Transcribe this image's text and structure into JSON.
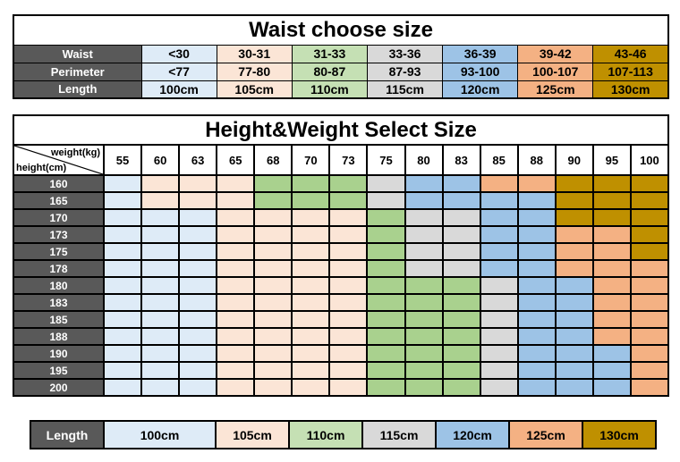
{
  "colors": {
    "background": "#ffffff",
    "border": "#000000",
    "header_bg": "#595959",
    "header_text": "#ffffff",
    "size_fill_light": {
      "100": "#DEEBF7",
      "105": "#FBE5D6",
      "110": "#C5E0B4",
      "115": "#D9D9D9",
      "120": "#9DC3E6",
      "125": "#F4B183",
      "130": "#BF9000"
    },
    "size_fill_grid": {
      "100": "#DEEBF7",
      "105": "#FBE5D6",
      "110": "#A9D18E",
      "115": "#D9D9D9",
      "120": "#9DC3E6",
      "125": "#F4B183",
      "130": "#BF9000"
    }
  },
  "chart_data": [
    {
      "type": "table",
      "title": "Waist choose size",
      "column_sizes": [
        "100",
        "105",
        "110",
        "115",
        "120",
        "125",
        "130"
      ],
      "rows": [
        {
          "label": "Waist",
          "values": [
            "<30",
            "30-31",
            "31-33",
            "33-36",
            "36-39",
            "39-42",
            "43-46"
          ]
        },
        {
          "label": "Perimeter",
          "values": [
            "<77",
            "77-80",
            "80-87",
            "87-93",
            "93-100",
            "100-107",
            "107-113"
          ]
        },
        {
          "label": "Length",
          "values": [
            "100cm",
            "105cm",
            "110cm",
            "115cm",
            "120cm",
            "125cm",
            "130cm"
          ]
        }
      ]
    },
    {
      "type": "heatmap",
      "title": "Height&Weight Select Size",
      "corner": {
        "top_label": "weight(kg)",
        "bottom_label": "height(cm)"
      },
      "x_axis": {
        "name": "weight(kg)",
        "ticks": [
          "55",
          "60",
          "63",
          "65",
          "68",
          "70",
          "73",
          "75",
          "80",
          "83",
          "85",
          "88",
          "90",
          "95",
          "100"
        ]
      },
      "y_axis": {
        "name": "height(cm)",
        "ticks": [
          "160",
          "165",
          "170",
          "173",
          "175",
          "178",
          "180",
          "183",
          "185",
          "188",
          "190",
          "195",
          "200"
        ]
      },
      "rows": [
        {
          "height": "160",
          "sizes": [
            "100",
            "105",
            "105",
            "105",
            "110",
            "110",
            "110",
            "115",
            "120",
            "120",
            "125",
            "125",
            "130",
            "130",
            "130"
          ]
        },
        {
          "height": "165",
          "sizes": [
            "100",
            "105",
            "105",
            "105",
            "110",
            "110",
            "110",
            "115",
            "120",
            "120",
            "120",
            "120",
            "130",
            "130",
            "130"
          ]
        },
        {
          "height": "170",
          "sizes": [
            "100",
            "100",
            "100",
            "105",
            "105",
            "105",
            "105",
            "110",
            "115",
            "115",
            "120",
            "120",
            "130",
            "130",
            "130"
          ]
        },
        {
          "height": "173",
          "sizes": [
            "100",
            "100",
            "100",
            "105",
            "105",
            "105",
            "105",
            "110",
            "115",
            "115",
            "120",
            "120",
            "125",
            "125",
            "130"
          ]
        },
        {
          "height": "175",
          "sizes": [
            "100",
            "100",
            "100",
            "105",
            "105",
            "105",
            "105",
            "110",
            "115",
            "115",
            "120",
            "120",
            "125",
            "125",
            "130"
          ]
        },
        {
          "height": "178",
          "sizes": [
            "100",
            "100",
            "100",
            "105",
            "105",
            "105",
            "105",
            "110",
            "115",
            "115",
            "120",
            "120",
            "125",
            "125",
            "125"
          ]
        },
        {
          "height": "180",
          "sizes": [
            "100",
            "100",
            "100",
            "105",
            "105",
            "105",
            "105",
            "110",
            "110",
            "110",
            "115",
            "120",
            "120",
            "125",
            "125"
          ]
        },
        {
          "height": "183",
          "sizes": [
            "100",
            "100",
            "100",
            "105",
            "105",
            "105",
            "105",
            "110",
            "110",
            "110",
            "115",
            "120",
            "120",
            "125",
            "125"
          ]
        },
        {
          "height": "185",
          "sizes": [
            "100",
            "100",
            "100",
            "105",
            "105",
            "105",
            "105",
            "110",
            "110",
            "110",
            "115",
            "120",
            "120",
            "125",
            "125"
          ]
        },
        {
          "height": "188",
          "sizes": [
            "100",
            "100",
            "100",
            "105",
            "105",
            "105",
            "105",
            "110",
            "110",
            "110",
            "115",
            "120",
            "120",
            "125",
            "125"
          ]
        },
        {
          "height": "190",
          "sizes": [
            "100",
            "100",
            "100",
            "105",
            "105",
            "105",
            "105",
            "110",
            "110",
            "110",
            "115",
            "120",
            "120",
            "120",
            "125"
          ]
        },
        {
          "height": "195",
          "sizes": [
            "100",
            "100",
            "100",
            "105",
            "105",
            "105",
            "105",
            "110",
            "110",
            "110",
            "115",
            "120",
            "120",
            "120",
            "125"
          ]
        },
        {
          "height": "200",
          "sizes": [
            "100",
            "100",
            "100",
            "105",
            "105",
            "105",
            "105",
            "110",
            "110",
            "110",
            "115",
            "120",
            "120",
            "120",
            "125"
          ]
        }
      ]
    }
  ],
  "legend": {
    "label": "Length",
    "items": [
      {
        "label": "100cm",
        "size": "100"
      },
      {
        "label": "105cm",
        "size": "105"
      },
      {
        "label": "110cm",
        "size": "110"
      },
      {
        "label": "115cm",
        "size": "115"
      },
      {
        "label": "120cm",
        "size": "120"
      },
      {
        "label": "125cm",
        "size": "125"
      },
      {
        "label": "130cm",
        "size": "130"
      }
    ]
  }
}
